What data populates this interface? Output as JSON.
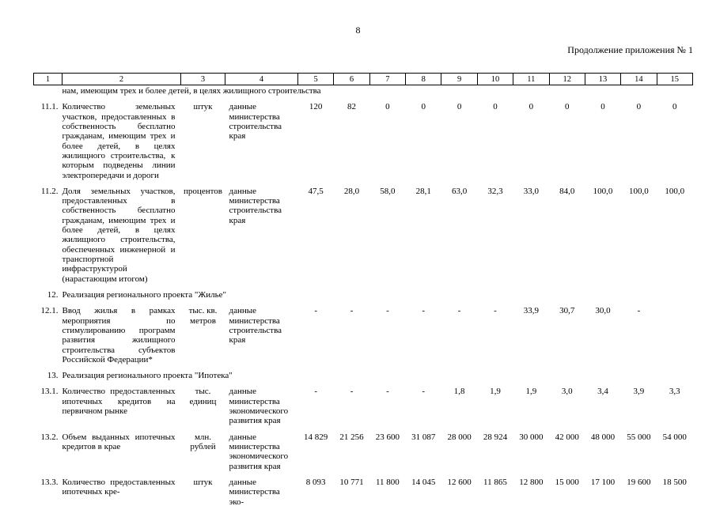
{
  "page": {
    "number": "8",
    "appendix_label": "Продолжение приложения № 1"
  },
  "table": {
    "column_numbers": [
      "1",
      "2",
      "3",
      "4",
      "5",
      "6",
      "7",
      "8",
      "9",
      "10",
      "11",
      "12",
      "13",
      "14",
      "15"
    ],
    "carryover_text": "нам, имеющим трех и более детей, в целях жилищного строительства",
    "rows": [
      {
        "type": "data",
        "num": "11.1.",
        "name": "Количество земельных участков, предоставленных в собственность бесплатно гражданам, имеющим трех и более детей, в целях жилищного строительства, к которым подведены линии электропередачи и дороги",
        "unit": "штук",
        "source": "данные министерства строительства края",
        "values": [
          "120",
          "82",
          "0",
          "0",
          "0",
          "0",
          "0",
          "0",
          "0",
          "0",
          "0"
        ]
      },
      {
        "type": "data",
        "num": "11.2.",
        "name": "Доля земельных участков, предоставленных в собственность бесплатно гражданам, имеющим трех и более детей, в целях жилищного строительства, обеспеченных инженерной и транспортной инфраструктурой (нарастающим итогом)",
        "unit": "процентов",
        "source": "данные министерства строительства края",
        "values": [
          "47,5",
          "28,0",
          "58,0",
          "28,1",
          "63,0",
          "32,3",
          "33,0",
          "84,0",
          "100,0",
          "100,0",
          "100,0"
        ]
      },
      {
        "type": "section",
        "num": "12.",
        "title": "Реализация регионального проекта \"Жилье\""
      },
      {
        "type": "data",
        "num": "12.1.",
        "name": "Ввод жилья в рамках мероприятия по стимулированию программ развития жилищного строительства субъектов Российской Федерации*",
        "unit": "тыс. кв. метров",
        "source": "данные министерства строительства края",
        "values": [
          "-",
          "-",
          "-",
          "-",
          "-",
          "-",
          "33,9",
          "30,7",
          "30,0",
          "-",
          ""
        ]
      },
      {
        "type": "section",
        "num": "13.",
        "title": "Реализация регионального проекта \"Ипотека\""
      },
      {
        "type": "data",
        "num": "13.1.",
        "name": "Количество предоставленных ипотечных кредитов на первичном рынке",
        "unit": "тыс. единиц",
        "source": "данные министерства экономического развития края",
        "values": [
          "-",
          "-",
          "-",
          "-",
          "1,8",
          "1,9",
          "1,9",
          "3,0",
          "3,4",
          "3,9",
          "3,3"
        ]
      },
      {
        "type": "data",
        "num": "13.2.",
        "name": "Объем выданных ипотечных кредитов в крае",
        "unit": "млн. рублей",
        "source": "данные министерства экономического развития края",
        "values": [
          "14 829",
          "21 256",
          "23 600",
          "31 087",
          "28 000",
          "28 924",
          "30 000",
          "42 000",
          "48 000",
          "55 000",
          "54 000"
        ]
      },
      {
        "type": "data",
        "num": "13.3.",
        "name": "Количество предоставленных ипотечных кре-",
        "unit": "штук",
        "source": "данные министерства эко-",
        "values": [
          "8 093",
          "10 771",
          "11 800",
          "14 045",
          "12 600",
          "11 865",
          "12 800",
          "15 000",
          "17 100",
          "19 600",
          "18 500"
        ]
      }
    ]
  }
}
